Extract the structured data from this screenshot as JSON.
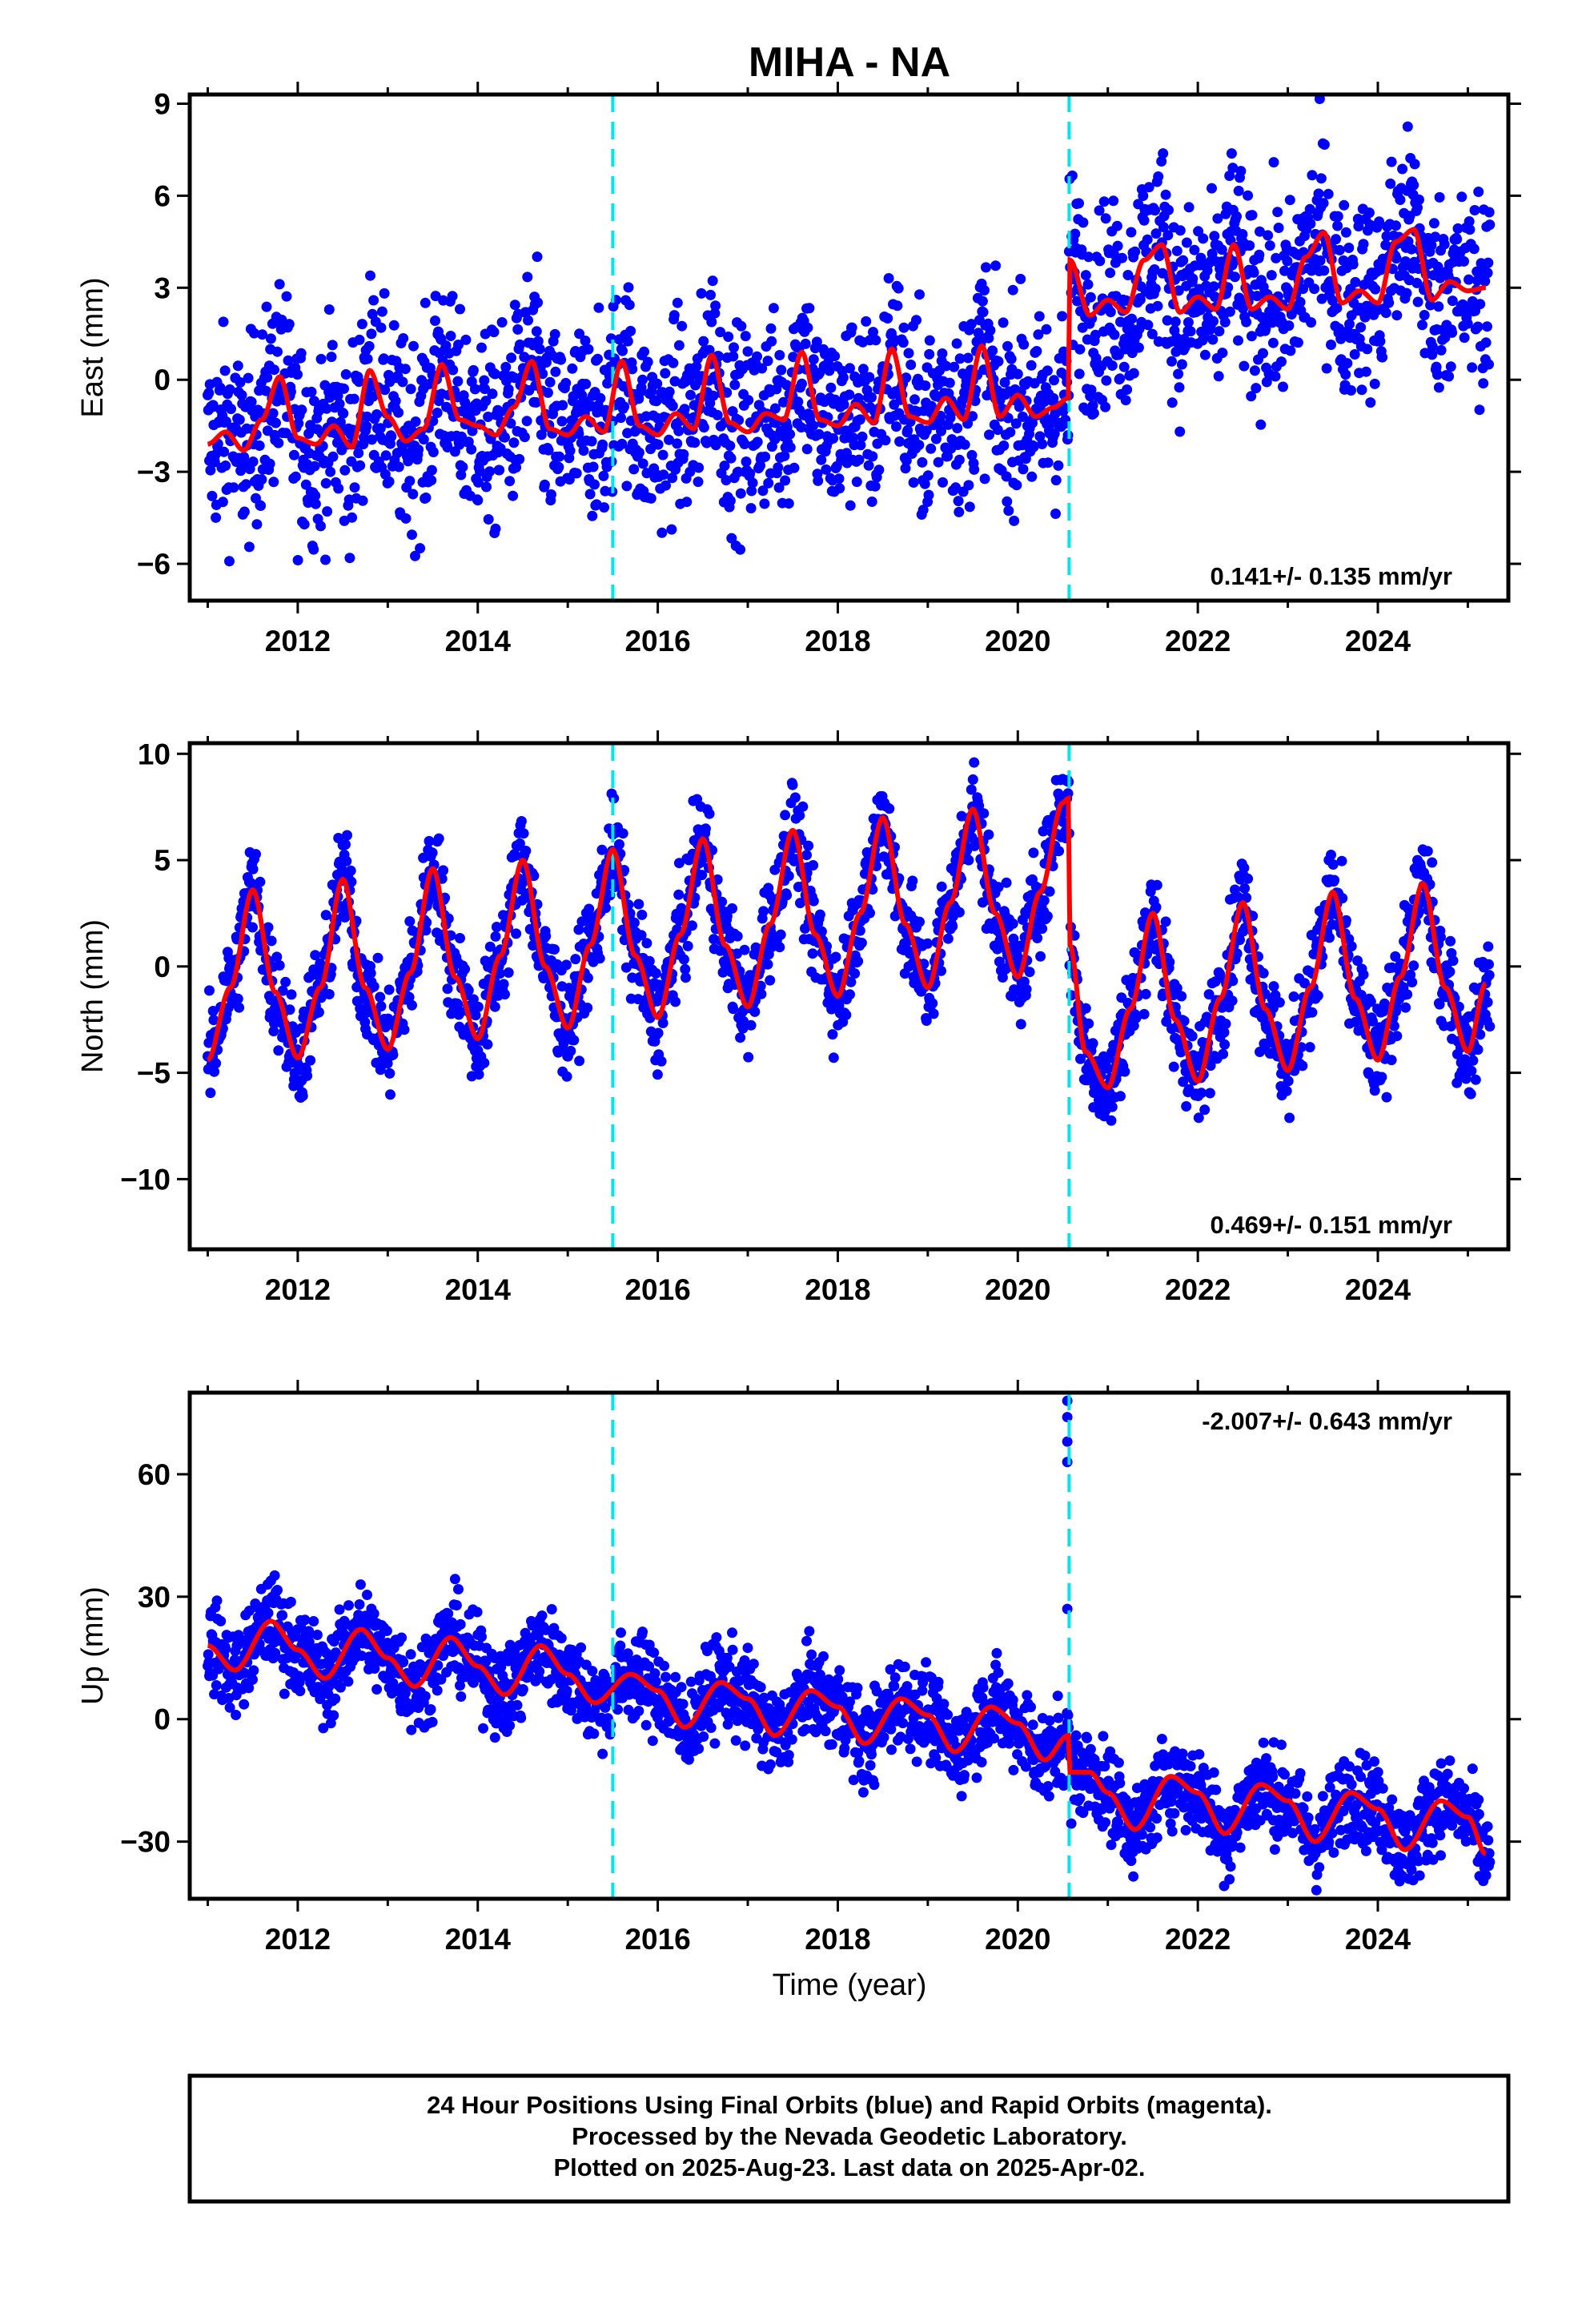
{
  "chart_data": {
    "title": "MIHA - NA",
    "xlabel": "Time (year)",
    "x_ticks": [
      "2012",
      "2014",
      "2016",
      "2018",
      "2020",
      "2022",
      "2024"
    ],
    "xlim": [
      2010.8,
      2025.45
    ],
    "equipment_changes": [
      2015.5,
      2020.57
    ],
    "colors": {
      "final_orbits": "#0000ff",
      "rapid_orbits": "#ff00ff",
      "model": "#ff0000",
      "equipment_change": "#00e5ee",
      "frame": "#000000"
    },
    "panels": [
      {
        "type": "scatter",
        "ylabel": "East (mm)",
        "ylim": [
          -7.2,
          9.3
        ],
        "y_ticks": [
          "−6",
          "−3",
          "0",
          "3",
          "6",
          "9"
        ],
        "y_tick_values": [
          -6,
          -3,
          0,
          3,
          6,
          9
        ],
        "rate": "0.141+/- 0.135 mm/yr",
        "rate_position": "bottom-right",
        "model": {
          "x": [
            2011.0,
            2011.2,
            2011.4,
            2011.6,
            2011.8,
            2012.0,
            2012.2,
            2012.4,
            2012.6,
            2012.8,
            2013.0,
            2013.2,
            2013.4,
            2013.6,
            2013.8,
            2014.0,
            2014.2,
            2014.4,
            2014.6,
            2014.8,
            2015.0,
            2015.2,
            2015.4,
            2015.6,
            2015.8,
            2016.0,
            2016.2,
            2016.4,
            2016.6,
            2016.8,
            2017.0,
            2017.2,
            2017.4,
            2017.6,
            2017.8,
            2018.0,
            2018.2,
            2018.4,
            2018.6,
            2018.8,
            2019.0,
            2019.2,
            2019.4,
            2019.6,
            2019.8,
            2020.0,
            2020.2,
            2020.4,
            2020.56,
            2020.58,
            2020.8,
            2021.0,
            2021.2,
            2021.4,
            2021.6,
            2021.8,
            2022.0,
            2022.2,
            2022.4,
            2022.6,
            2022.8,
            2023.0,
            2023.2,
            2023.4,
            2023.6,
            2023.8,
            2024.0,
            2024.2,
            2024.4,
            2024.6,
            2024.8,
            2025.0,
            2025.2
          ],
          "y": [
            -2.1,
            -1.7,
            -2.3,
            -1.3,
            0.1,
            -1.9,
            -2.1,
            -1.5,
            -2.2,
            0.3,
            -1.2,
            -2.0,
            -1.6,
            0.5,
            -1.3,
            -1.5,
            -1.8,
            -0.9,
            0.6,
            -1.6,
            -1.8,
            -1.2,
            -1.7,
            0.6,
            -1.5,
            -1.8,
            -1.1,
            -1.6,
            0.8,
            -1.4,
            -1.7,
            -1.1,
            -1.3,
            0.9,
            -1.3,
            -1.5,
            -0.8,
            -1.4,
            1.0,
            -1.2,
            -1.4,
            -0.6,
            -1.3,
            1.1,
            -1.2,
            -0.5,
            -1.2,
            -0.9,
            -0.6,
            3.9,
            2.1,
            2.6,
            2.2,
            3.9,
            4.4,
            2.2,
            2.7,
            2.3,
            4.4,
            2.3,
            2.7,
            2.3,
            4.0,
            4.8,
            2.5,
            2.9,
            2.5,
            4.5,
            4.9,
            2.6,
            3.2,
            2.9,
            3.0
          ],
          "amp": 1.6
        }
      },
      {
        "type": "scatter",
        "ylabel": "North (mm)",
        "ylim": [
          -13.3,
          10.5
        ],
        "y_ticks": [
          "−10",
          "−5",
          "0",
          "5",
          "10"
        ],
        "y_tick_values": [
          -10,
          -5,
          0,
          5,
          10
        ],
        "rate": "0.469+/- 0.151 mm/yr",
        "rate_position": "bottom-right",
        "model": {
          "x": [
            2011.0,
            2011.25,
            2011.5,
            2011.75,
            2012.0,
            2012.25,
            2012.5,
            2012.75,
            2013.0,
            2013.25,
            2013.5,
            2013.75,
            2014.0,
            2014.25,
            2014.5,
            2014.75,
            2015.0,
            2015.25,
            2015.5,
            2015.75,
            2016.0,
            2016.25,
            2016.5,
            2016.75,
            2017.0,
            2017.25,
            2017.5,
            2017.75,
            2018.0,
            2018.25,
            2018.5,
            2018.75,
            2019.0,
            2019.25,
            2019.5,
            2019.75,
            2020.0,
            2020.25,
            2020.5,
            2020.56,
            2020.58,
            2020.75,
            2021.0,
            2021.25,
            2021.5,
            2021.75,
            2022.0,
            2022.25,
            2022.5,
            2022.75,
            2023.0,
            2023.25,
            2023.5,
            2023.75,
            2024.0,
            2024.25,
            2024.5,
            2024.75,
            2025.0,
            2025.2
          ],
          "y": [
            -4.4,
            -1.0,
            3.6,
            -1.2,
            -4.3,
            -1.0,
            4.1,
            -1.0,
            -3.9,
            -0.3,
            4.6,
            -0.5,
            -3.4,
            0.5,
            5.0,
            0.0,
            -2.9,
            1.0,
            5.5,
            0.5,
            -2.4,
            1.5,
            6.0,
            1.0,
            -1.9,
            2.0,
            6.4,
            1.5,
            -1.4,
            2.5,
            7.0,
            2.0,
            -1.0,
            3.0,
            7.4,
            2.5,
            -0.5,
            3.5,
            7.7,
            7.9,
            1.0,
            -4.0,
            -5.7,
            -2.0,
            2.5,
            -2.5,
            -5.4,
            -1.5,
            3.0,
            -2.0,
            -4.9,
            -1.0,
            3.5,
            -1.5,
            -4.4,
            -0.5,
            3.9,
            -1.0,
            -4.0,
            -0.8
          ],
          "amp": 1.2
        }
      },
      {
        "type": "scatter",
        "ylabel": "Up (mm)",
        "ylim": [
          -44,
          80
        ],
        "y_ticks": [
          "−30",
          "0",
          "30",
          "60"
        ],
        "y_tick_values": [
          -30,
          0,
          30,
          60
        ],
        "rate": "-2.007+/- 0.643 mm/yr",
        "rate_position": "top-right",
        "outliers": [
          [
            2020.55,
            78
          ],
          [
            2020.55,
            74
          ],
          [
            2020.55,
            68
          ],
          [
            2020.55,
            63
          ],
          [
            2020.55,
            27
          ]
        ],
        "model": {
          "x": [
            2011.0,
            2011.3,
            2011.7,
            2012.0,
            2012.3,
            2012.7,
            2013.0,
            2013.3,
            2013.7,
            2014.0,
            2014.3,
            2014.7,
            2015.0,
            2015.3,
            2015.7,
            2016.0,
            2016.3,
            2016.7,
            2017.0,
            2017.3,
            2017.7,
            2018.0,
            2018.3,
            2018.7,
            2019.0,
            2019.3,
            2019.7,
            2020.0,
            2020.3,
            2020.56,
            2020.58,
            2020.8,
            2021.0,
            2021.3,
            2021.7,
            2022.0,
            2022.3,
            2022.7,
            2023.0,
            2023.3,
            2023.7,
            2024.0,
            2024.3,
            2024.7,
            2025.0,
            2025.2
          ],
          "y": [
            18,
            12,
            24,
            17,
            10,
            22,
            15,
            8,
            20,
            13,
            6,
            18,
            11,
            4,
            11,
            7,
            -2,
            9,
            5,
            -4,
            7,
            3,
            -6,
            5,
            1,
            -8,
            3,
            -1,
            -10,
            -4,
            -13,
            -13,
            -18,
            -27,
            -14,
            -18,
            -28,
            -16,
            -20,
            -30,
            -18,
            -22,
            -32,
            -20,
            -24,
            -33
          ],
          "amp": 5.5
        }
      }
    ],
    "caption": [
      "24 Hour Positions Using Final Orbits (blue) and Rapid Orbits (magenta).",
      "Processed by the Nevada Geodetic Laboratory.",
      "Plotted on 2025-Aug-23. Last data on 2025-Apr-02."
    ]
  }
}
